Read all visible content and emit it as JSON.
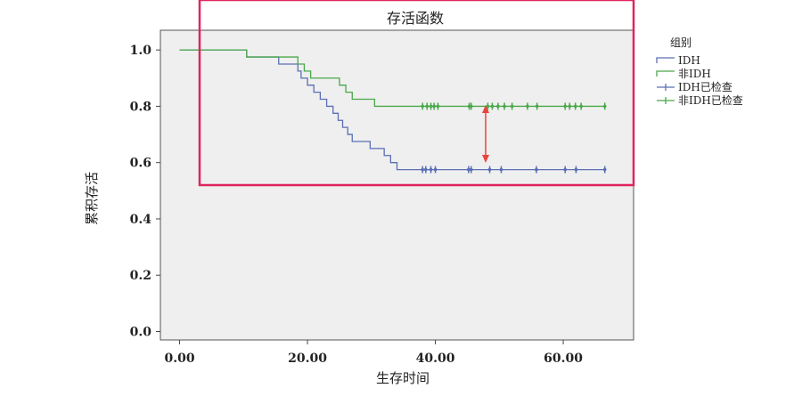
{
  "chart_data": {
    "type": "line",
    "step": true,
    "title": "存活函数",
    "xlabel": "生存时间",
    "ylabel": "累积存活",
    "xlim": [
      -3,
      71
    ],
    "ylim": [
      -0.03,
      1.07
    ],
    "x_ticks": [
      0,
      20,
      40,
      60
    ],
    "x_tick_labels": [
      "0.00",
      "20.00",
      "40.00",
      "60.00"
    ],
    "y_ticks": [
      0,
      0.2,
      0.4,
      0.6,
      0.8,
      1.0
    ],
    "y_tick_labels": [
      "0.0",
      "0.2",
      "0.4",
      "0.6",
      "0.8",
      "1.0"
    ],
    "grid": false,
    "legend_title": "组别",
    "legend_placement": "top-right, outside plot",
    "legend": [
      "IDH",
      "非IDH",
      "IDH已检查",
      "非IDH已检查"
    ],
    "series": [
      {
        "name": "IDH",
        "color": "#5a6fb5",
        "censor_name": "IDH已检查",
        "steps": [
          [
            0,
            1.0
          ],
          [
            10.5,
            0.975
          ],
          [
            15.5,
            0.95
          ],
          [
            18.5,
            0.925
          ],
          [
            19,
            0.9
          ],
          [
            20,
            0.875
          ],
          [
            21,
            0.85
          ],
          [
            22,
            0.825
          ],
          [
            23,
            0.8
          ],
          [
            24,
            0.775
          ],
          [
            24.8,
            0.75
          ],
          [
            25.5,
            0.725
          ],
          [
            26.3,
            0.7
          ],
          [
            27,
            0.675
          ],
          [
            29.8,
            0.65
          ],
          [
            32,
            0.625
          ],
          [
            33,
            0.6
          ],
          [
            34,
            0.575
          ]
        ],
        "x_end": 66.5,
        "censored": [
          38,
          38.5,
          39.3,
          40,
          45.2,
          45.6,
          48.5,
          50.3,
          55.8,
          60.3,
          62,
          66.5
        ]
      },
      {
        "name": "非IDH",
        "color": "#4aa84a",
        "censor_name": "非IDH已检查",
        "steps": [
          [
            0,
            1.0
          ],
          [
            10.5,
            0.975
          ],
          [
            18.5,
            0.95
          ],
          [
            19.5,
            0.925
          ],
          [
            20.5,
            0.9
          ],
          [
            25,
            0.875
          ],
          [
            26,
            0.85
          ],
          [
            27,
            0.825
          ],
          [
            30.5,
            0.8
          ]
        ],
        "x_end": 66.5,
        "censored": [
          38,
          38.7,
          39.3,
          39.8,
          40.4,
          45.3,
          45.6,
          48.2,
          48.9,
          49.8,
          50.8,
          52,
          54.4,
          55.9,
          60.3,
          61,
          61.9,
          62.8,
          66.5
        ]
      }
    ]
  }
}
